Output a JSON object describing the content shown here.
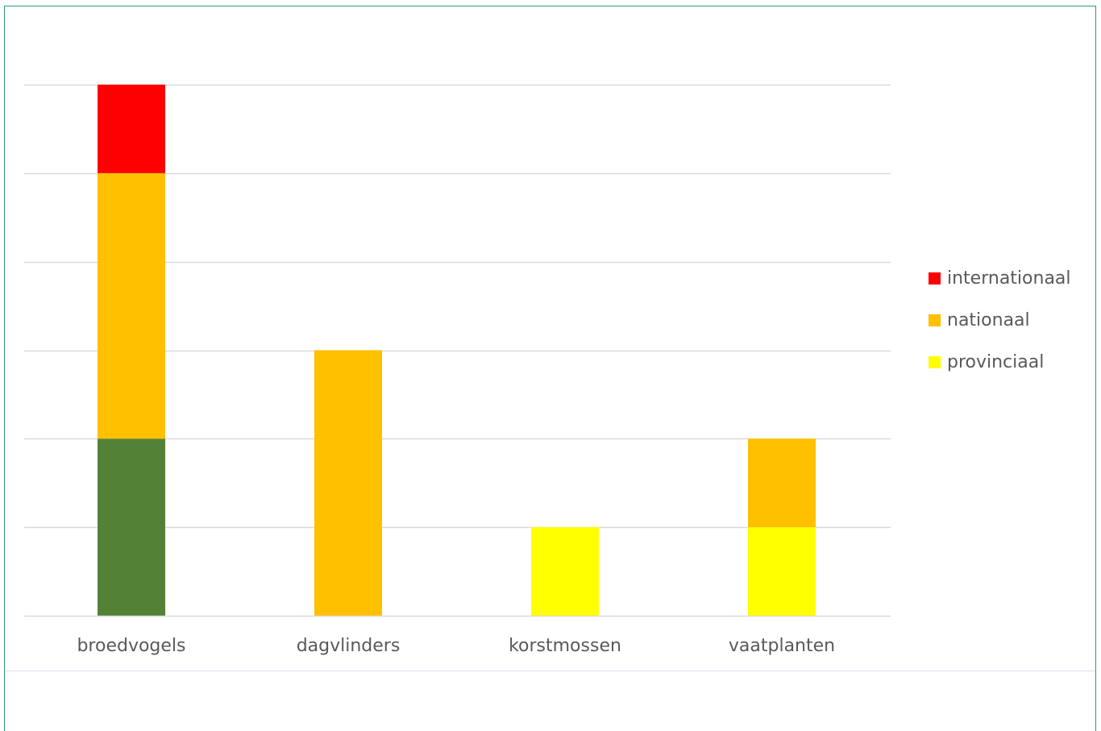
{
  "chart_data": {
    "type": "bar",
    "stacked": true,
    "categories": [
      "broedvogels",
      "dagvlinders",
      "korstmossen",
      "vaatplanten"
    ],
    "ylim": [
      0,
      6
    ],
    "grid": true,
    "legend_position": "right",
    "series": [
      {
        "name": "",
        "color": "#538135",
        "values": [
          2,
          0,
          0,
          0
        ]
      },
      {
        "name": "provinciaal",
        "color": "#ffff00",
        "values": [
          0,
          0,
          1,
          1
        ]
      },
      {
        "name": "nationaal",
        "color": "#ffc000",
        "values": [
          3,
          3,
          0,
          1
        ]
      },
      {
        "name": "internationaal",
        "color": "#ff0000",
        "values": [
          1,
          0,
          0,
          0
        ]
      }
    ],
    "legend": [
      {
        "label": "internationaal",
        "color": "#ff0000"
      },
      {
        "label": "nationaal",
        "color": "#ffc000"
      },
      {
        "label": "provinciaal",
        "color": "#ffff00"
      }
    ]
  }
}
